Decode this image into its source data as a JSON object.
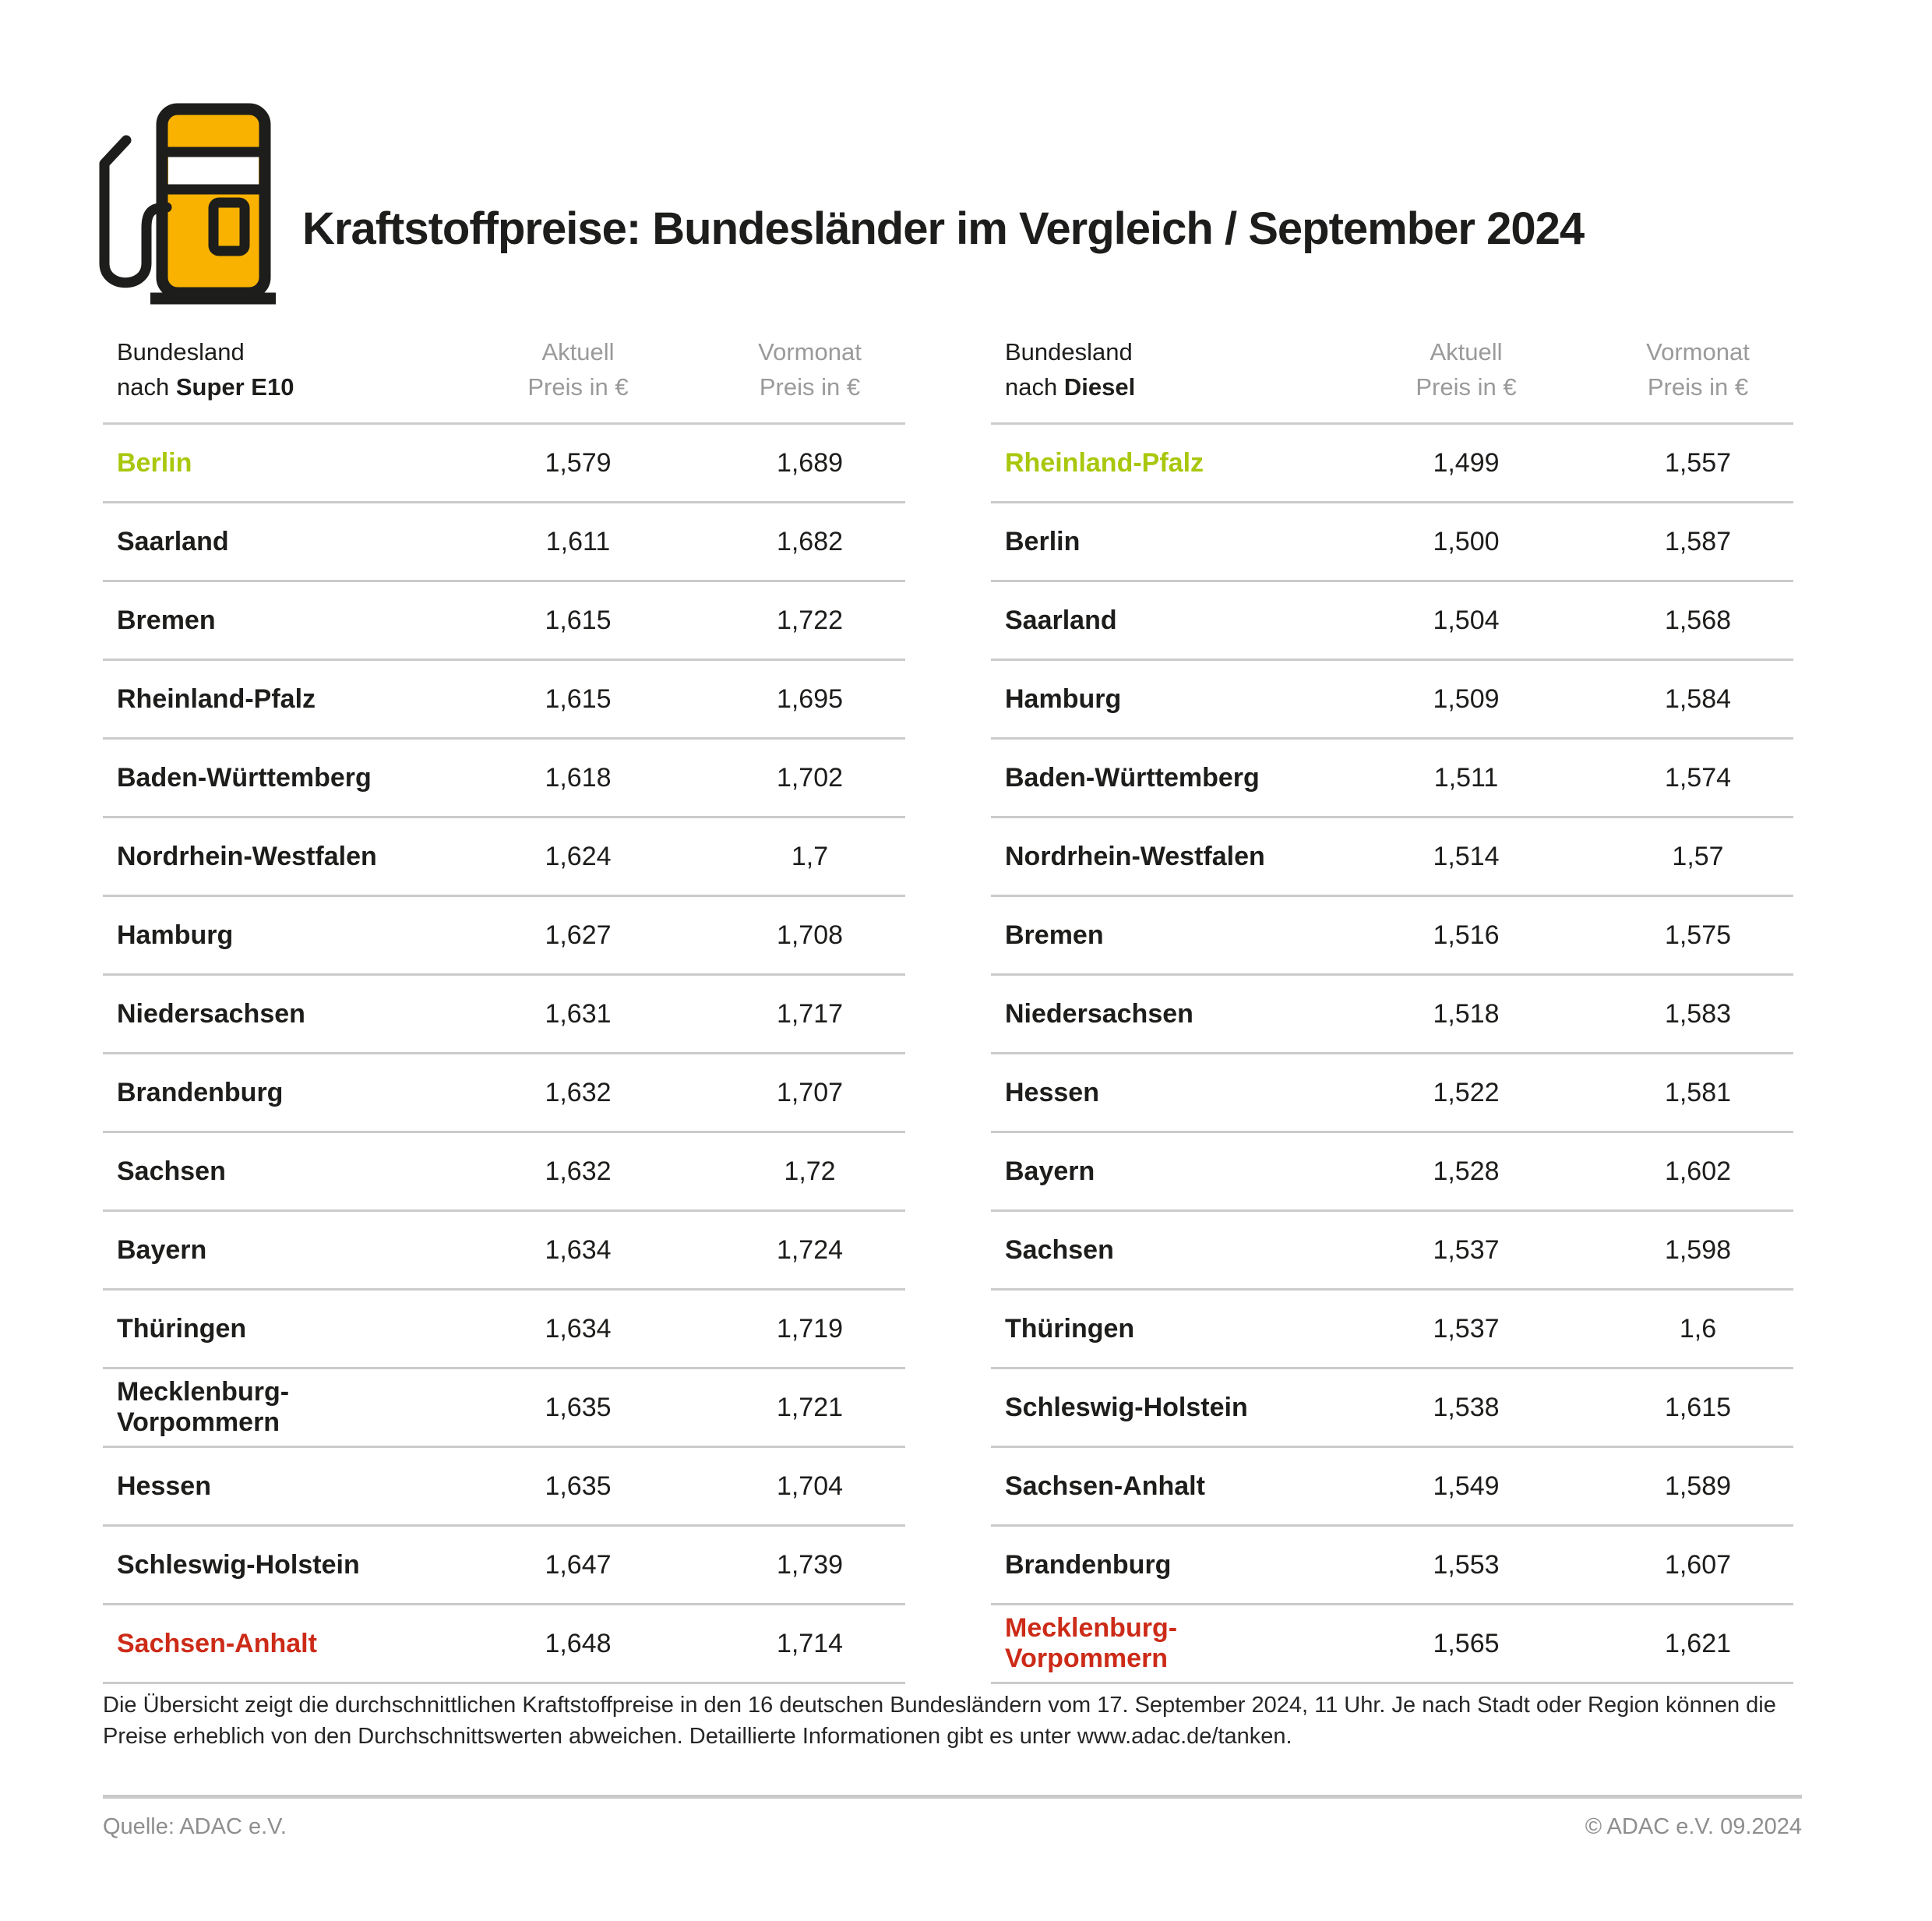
{
  "header": {
    "title": "Kraftstoffpreise: Bundesländer im Vergleich / September 2024",
    "icon": "fuel-pump-icon"
  },
  "colors": {
    "best": "#a9c70c",
    "worst": "#cc2b18",
    "accent_yellow": "#f9b200",
    "outline_black": "#1d1d1b",
    "muted_gray": "#9a9a9a",
    "divider_gray": "#cbcbcb"
  },
  "tables": [
    {
      "head": {
        "line1": "Bundesland",
        "prefix": "nach ",
        "fuel": "Super E10",
        "aktuell_1": "Aktuell",
        "aktuell_2": "Preis in €",
        "vormonat_1": "Vormonat",
        "vormonat_2": "Preis in €"
      },
      "rows": [
        {
          "name": "Berlin",
          "aktuell": "1,579",
          "vormonat": "1,689",
          "highlight": "best"
        },
        {
          "name": "Saarland",
          "aktuell": "1,611",
          "vormonat": "1,682"
        },
        {
          "name": "Bremen",
          "aktuell": "1,615",
          "vormonat": "1,722"
        },
        {
          "name": "Rheinland-Pfalz",
          "aktuell": "1,615",
          "vormonat": "1,695"
        },
        {
          "name": "Baden-Württemberg",
          "aktuell": "1,618",
          "vormonat": "1,702"
        },
        {
          "name": "Nordrhein-Westfalen",
          "aktuell": "1,624",
          "vormonat": "1,7"
        },
        {
          "name": "Hamburg",
          "aktuell": "1,627",
          "vormonat": "1,708"
        },
        {
          "name": "Niedersachsen",
          "aktuell": "1,631",
          "vormonat": "1,717"
        },
        {
          "name": "Brandenburg",
          "aktuell": "1,632",
          "vormonat": "1,707"
        },
        {
          "name": "Sachsen",
          "aktuell": "1,632",
          "vormonat": "1,72"
        },
        {
          "name": "Bayern",
          "aktuell": "1,634",
          "vormonat": "1,724"
        },
        {
          "name": "Thüringen",
          "aktuell": "1,634",
          "vormonat": "1,719"
        },
        {
          "name": "Mecklenburg-Vorpommern",
          "aktuell": "1,635",
          "vormonat": "1,721"
        },
        {
          "name": "Hessen",
          "aktuell": "1,635",
          "vormonat": "1,704"
        },
        {
          "name": "Schleswig-Holstein",
          "aktuell": "1,647",
          "vormonat": "1,739"
        },
        {
          "name": "Sachsen-Anhalt",
          "aktuell": "1,648",
          "vormonat": "1,714",
          "highlight": "worst"
        }
      ]
    },
    {
      "head": {
        "line1": "Bundesland",
        "prefix": "nach ",
        "fuel": "Diesel",
        "aktuell_1": "Aktuell",
        "aktuell_2": "Preis in €",
        "vormonat_1": "Vormonat",
        "vormonat_2": "Preis in €"
      },
      "rows": [
        {
          "name": "Rheinland-Pfalz",
          "aktuell": "1,499",
          "vormonat": "1,557",
          "highlight": "best"
        },
        {
          "name": "Berlin",
          "aktuell": "1,500",
          "vormonat": "1,587"
        },
        {
          "name": "Saarland",
          "aktuell": "1,504",
          "vormonat": "1,568"
        },
        {
          "name": "Hamburg",
          "aktuell": "1,509",
          "vormonat": "1,584"
        },
        {
          "name": "Baden-Württemberg",
          "aktuell": "1,511",
          "vormonat": "1,574"
        },
        {
          "name": "Nordrhein-Westfalen",
          "aktuell": "1,514",
          "vormonat": "1,57"
        },
        {
          "name": "Bremen",
          "aktuell": "1,516",
          "vormonat": "1,575"
        },
        {
          "name": "Niedersachsen",
          "aktuell": "1,518",
          "vormonat": "1,583"
        },
        {
          "name": "Hessen",
          "aktuell": "1,522",
          "vormonat": "1,581"
        },
        {
          "name": "Bayern",
          "aktuell": "1,528",
          "vormonat": "1,602"
        },
        {
          "name": "Sachsen",
          "aktuell": "1,537",
          "vormonat": "1,598"
        },
        {
          "name": "Thüringen",
          "aktuell": "1,537",
          "vormonat": "1,6"
        },
        {
          "name": "Schleswig-Holstein",
          "aktuell": "1,538",
          "vormonat": "1,615"
        },
        {
          "name": "Sachsen-Anhalt",
          "aktuell": "1,549",
          "vormonat": "1,589"
        },
        {
          "name": "Brandenburg",
          "aktuell": "1,553",
          "vormonat": "1,607"
        },
        {
          "name": "Mecklenburg-Vorpommern",
          "aktuell": "1,565",
          "vormonat": "1,621",
          "highlight": "worst"
        }
      ]
    }
  ],
  "chart_data": [
    {
      "type": "table",
      "title": "Bundesland nach Super E10",
      "columns": [
        "Bundesland",
        "Aktuell Preis in €",
        "Vormonat Preis in €"
      ],
      "rows": [
        [
          "Berlin",
          1.579,
          1.689
        ],
        [
          "Saarland",
          1.611,
          1.682
        ],
        [
          "Bremen",
          1.615,
          1.722
        ],
        [
          "Rheinland-Pfalz",
          1.615,
          1.695
        ],
        [
          "Baden-Württemberg",
          1.618,
          1.702
        ],
        [
          "Nordrhein-Westfalen",
          1.624,
          1.7
        ],
        [
          "Hamburg",
          1.627,
          1.708
        ],
        [
          "Niedersachsen",
          1.631,
          1.717
        ],
        [
          "Brandenburg",
          1.632,
          1.707
        ],
        [
          "Sachsen",
          1.632,
          1.72
        ],
        [
          "Bayern",
          1.634,
          1.724
        ],
        [
          "Thüringen",
          1.634,
          1.719
        ],
        [
          "Mecklenburg-Vorpommern",
          1.635,
          1.721
        ],
        [
          "Hessen",
          1.635,
          1.704
        ],
        [
          "Schleswig-Holstein",
          1.647,
          1.739
        ],
        [
          "Sachsen-Anhalt",
          1.648,
          1.714
        ]
      ]
    },
    {
      "type": "table",
      "title": "Bundesland nach Diesel",
      "columns": [
        "Bundesland",
        "Aktuell Preis in €",
        "Vormonat Preis in €"
      ],
      "rows": [
        [
          "Rheinland-Pfalz",
          1.499,
          1.557
        ],
        [
          "Berlin",
          1.5,
          1.587
        ],
        [
          "Saarland",
          1.504,
          1.568
        ],
        [
          "Hamburg",
          1.509,
          1.584
        ],
        [
          "Baden-Württemberg",
          1.511,
          1.574
        ],
        [
          "Nordrhein-Westfalen",
          1.514,
          1.57
        ],
        [
          "Bremen",
          1.516,
          1.575
        ],
        [
          "Niedersachsen",
          1.518,
          1.583
        ],
        [
          "Hessen",
          1.522,
          1.581
        ],
        [
          "Bayern",
          1.528,
          1.602
        ],
        [
          "Sachsen",
          1.537,
          1.598
        ],
        [
          "Thüringen",
          1.537,
          1.6
        ],
        [
          "Schleswig-Holstein",
          1.538,
          1.615
        ],
        [
          "Sachsen-Anhalt",
          1.549,
          1.589
        ],
        [
          "Brandenburg",
          1.553,
          1.607
        ],
        [
          "Mecklenburg-Vorpommern",
          1.565,
          1.621
        ]
      ]
    }
  ],
  "footnote": {
    "line1": "Die Übersicht zeigt die durchschnittlichen Kraftstoffpreise in den 16 deutschen Bundesländern vom 17. September 2024, 11 Uhr. Je nach Stadt oder Region können die",
    "line2": "Preise erheblich von den Durchschnittswerten abweichen. Detaillierte Informationen gibt es unter www.adac.de/tanken."
  },
  "footer": {
    "source": "Quelle: ADAC e.V.",
    "copyright": "© ADAC e.V. 09.2024"
  }
}
